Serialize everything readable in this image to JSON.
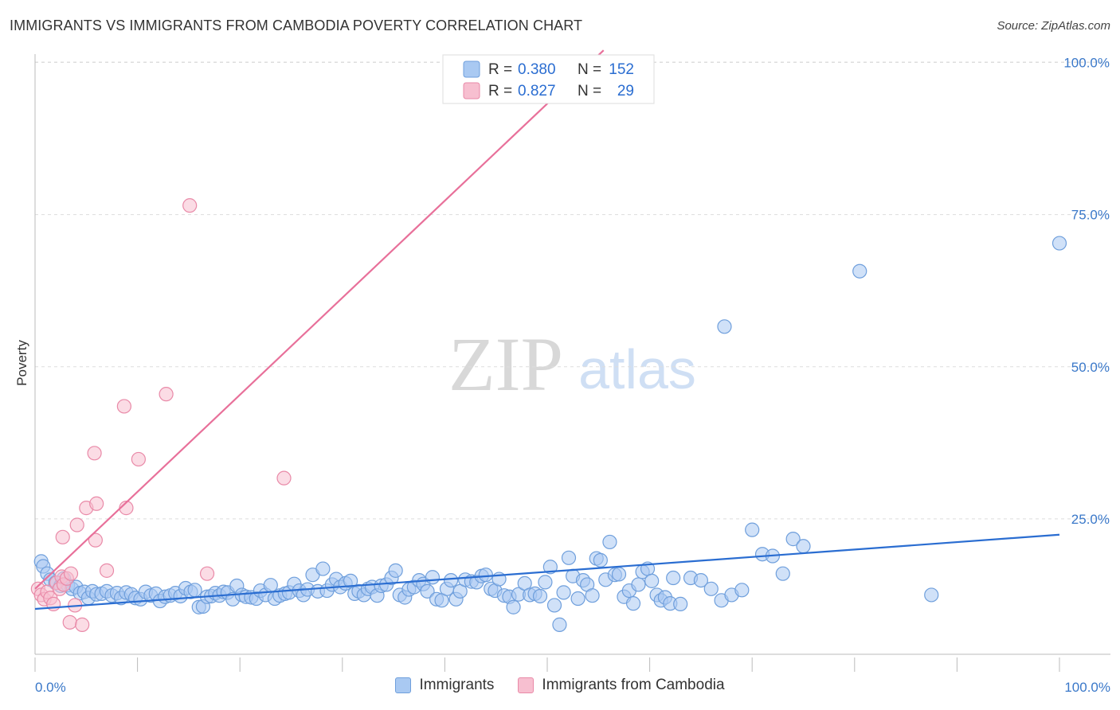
{
  "header": {
    "title": "IMMIGRANTS VS IMMIGRANTS FROM CAMBODIA POVERTY CORRELATION CHART",
    "source": "Source: ZipAtlas.com"
  },
  "watermark": {
    "zip": "ZIP",
    "atlas": "atlas"
  },
  "colors": {
    "blue_fill": "#a9c9f2",
    "blue_stroke": "#6f9fdc",
    "blue_line": "#2a6dd1",
    "pink_fill": "#f7bfd0",
    "pink_stroke": "#e98aa8",
    "pink_line": "#e8709a",
    "label_blue": "#3a78c9",
    "grid": "#dddddd",
    "axis": "#bbbbbb"
  },
  "legend": {
    "items": [
      {
        "r_label": "R =",
        "r_value": "0.380",
        "n_label": "N =",
        "n_value": "152"
      },
      {
        "r_label": "R =",
        "r_value": "0.827",
        "n_label": "N =",
        "n_value": "29"
      }
    ]
  },
  "bottom_legend": {
    "series1": "Immigrants",
    "series2": "Immigrants from Cambodia"
  },
  "chart_data": {
    "type": "scatter",
    "title": "IMMIGRANTS VS IMMIGRANTS FROM CAMBODIA POVERTY CORRELATION CHART",
    "xlabel": "",
    "ylabel": "Poverty",
    "xlim": [
      0,
      100
    ],
    "ylim": [
      0,
      102
    ],
    "x_tick_labels": [
      "0.0%",
      "100.0%"
    ],
    "y_ticks": [
      25,
      50,
      75,
      100
    ],
    "y_tick_labels": [
      "25.0%",
      "50.0%",
      "75.0%",
      "100.0%"
    ],
    "grid": true,
    "legend_position": "top-center",
    "series": [
      {
        "name": "Immigrants",
        "r": 0.38,
        "n": 152,
        "trend": {
          "x": [
            0,
            100
          ],
          "y": [
            10.2,
            22.4
          ]
        },
        "points": [
          [
            0.6,
            18
          ],
          [
            0.8,
            17.2
          ],
          [
            1.2,
            16
          ],
          [
            1.5,
            15
          ],
          [
            2,
            14.5
          ],
          [
            2.5,
            14
          ],
          [
            2.8,
            15.2
          ],
          [
            3.2,
            14.1
          ],
          [
            3.6,
            13.5
          ],
          [
            4,
            13.8
          ],
          [
            4.4,
            12.8
          ],
          [
            4.8,
            13
          ],
          [
            5.2,
            12
          ],
          [
            5.6,
            13.1
          ],
          [
            6,
            12.6
          ],
          [
            6.5,
            12.7
          ],
          [
            7,
            13.1
          ],
          [
            7.5,
            12.4
          ],
          [
            8,
            12.8
          ],
          [
            8.4,
            12
          ],
          [
            8.9,
            12.9
          ],
          [
            9.4,
            12.6
          ],
          [
            9.8,
            12
          ],
          [
            10.3,
            11.8
          ],
          [
            10.8,
            13
          ],
          [
            11.3,
            12.4
          ],
          [
            11.8,
            12.7
          ],
          [
            12.2,
            11.5
          ],
          [
            12.7,
            12.2
          ],
          [
            13.2,
            12.4
          ],
          [
            13.7,
            12.8
          ],
          [
            14.2,
            12.3
          ],
          [
            14.7,
            13.6
          ],
          [
            15.2,
            13
          ],
          [
            15.6,
            13.3
          ],
          [
            16,
            10.5
          ],
          [
            16.4,
            10.6
          ],
          [
            16.8,
            12.2
          ],
          [
            17.2,
            12.3
          ],
          [
            17.6,
            12.8
          ],
          [
            18,
            12.4
          ],
          [
            18.4,
            13
          ],
          [
            18.8,
            12.9
          ],
          [
            19.3,
            11.8
          ],
          [
            19.7,
            14
          ],
          [
            20.2,
            12.5
          ],
          [
            20.6,
            12.2
          ],
          [
            21.1,
            12.1
          ],
          [
            21.6,
            11.9
          ],
          [
            22,
            13.2
          ],
          [
            22.5,
            12.5
          ],
          [
            23,
            14.1
          ],
          [
            23.4,
            11.9
          ],
          [
            23.9,
            12.4
          ],
          [
            24.4,
            12.7
          ],
          [
            24.8,
            12.9
          ],
          [
            25.3,
            14.3
          ],
          [
            25.8,
            13.2
          ],
          [
            26.2,
            12.5
          ],
          [
            26.6,
            13.4
          ],
          [
            27.1,
            15.8
          ],
          [
            27.6,
            13.1
          ],
          [
            28.1,
            16.8
          ],
          [
            28.5,
            13.2
          ],
          [
            29,
            14.2
          ],
          [
            29.4,
            15.1
          ],
          [
            29.8,
            13.8
          ],
          [
            30.3,
            14.4
          ],
          [
            30.8,
            14.8
          ],
          [
            31.2,
            12.7
          ],
          [
            31.6,
            13.1
          ],
          [
            32.1,
            12.5
          ],
          [
            32.5,
            13.5
          ],
          [
            32.9,
            13.8
          ],
          [
            33.4,
            12.4
          ],
          [
            33.8,
            14
          ],
          [
            34.3,
            14.2
          ],
          [
            34.8,
            15.3
          ],
          [
            35.2,
            16.5
          ],
          [
            35.6,
            12.5
          ],
          [
            36.1,
            12.1
          ],
          [
            36.5,
            13.4
          ],
          [
            37,
            13.8
          ],
          [
            37.5,
            14.9
          ],
          [
            37.9,
            14.3
          ],
          [
            38.3,
            13.1
          ],
          [
            38.8,
            15.4
          ],
          [
            39.2,
            11.8
          ],
          [
            39.7,
            11.6
          ],
          [
            40.2,
            13.5
          ],
          [
            40.6,
            14.9
          ],
          [
            41.1,
            11.8
          ],
          [
            41.5,
            13.1
          ],
          [
            42,
            15
          ],
          [
            42.6,
            14.7
          ],
          [
            43.1,
            14.6
          ],
          [
            43.6,
            15.6
          ],
          [
            44,
            15.8
          ],
          [
            44.5,
            13.5
          ],
          [
            44.9,
            13.2
          ],
          [
            45.3,
            15.1
          ],
          [
            45.8,
            12.4
          ],
          [
            46.3,
            12.2
          ],
          [
            46.7,
            10.5
          ],
          [
            47.2,
            12.6
          ],
          [
            47.8,
            14.4
          ],
          [
            48.3,
            12.5
          ],
          [
            48.8,
            12.7
          ],
          [
            49.3,
            12.3
          ],
          [
            49.8,
            14.6
          ],
          [
            50.3,
            17.1
          ],
          [
            50.7,
            10.8
          ],
          [
            51.2,
            7.6
          ],
          [
            51.6,
            12.9
          ],
          [
            52.1,
            18.6
          ],
          [
            52.5,
            15.6
          ],
          [
            53,
            11.9
          ],
          [
            53.5,
            14.9
          ],
          [
            53.9,
            14.2
          ],
          [
            54.4,
            12.4
          ],
          [
            54.8,
            18.5
          ],
          [
            55.2,
            18.2
          ],
          [
            55.7,
            15
          ],
          [
            56.1,
            21.2
          ],
          [
            56.6,
            15.8
          ],
          [
            57,
            15.9
          ],
          [
            57.5,
            12.2
          ],
          [
            58,
            13.2
          ],
          [
            58.4,
            11.1
          ],
          [
            58.9,
            14.2
          ],
          [
            59.3,
            16.3
          ],
          [
            59.8,
            16.8
          ],
          [
            60.2,
            14.8
          ],
          [
            60.7,
            12.5
          ],
          [
            61.1,
            11.6
          ],
          [
            61.5,
            12.1
          ],
          [
            62,
            11.1
          ],
          [
            62.3,
            15.3
          ],
          [
            63,
            11
          ],
          [
            64,
            15.3
          ],
          [
            65,
            14.9
          ],
          [
            66,
            13.5
          ],
          [
            67,
            11.6
          ],
          [
            68,
            12.5
          ],
          [
            69,
            13.3
          ],
          [
            70,
            23.2
          ],
          [
            71,
            19.2
          ],
          [
            72,
            18.9
          ],
          [
            73,
            16
          ],
          [
            74,
            21.7
          ],
          [
            75,
            20.5
          ],
          [
            80.5,
            65.7
          ],
          [
            67.3,
            56.6
          ],
          [
            87.5,
            12.5
          ],
          [
            100,
            70.3
          ]
        ]
      },
      {
        "name": "Immigrants from Cambodia",
        "r": 0.827,
        "n": 29,
        "trend": {
          "x": [
            0,
            55.5
          ],
          "y": [
            13.5,
            102
          ]
        },
        "points": [
          [
            0.3,
            13.5
          ],
          [
            0.6,
            12.5
          ],
          [
            0.9,
            11.8
          ],
          [
            1.2,
            13
          ],
          [
            1.5,
            12
          ],
          [
            1.8,
            11
          ],
          [
            2.1,
            14.5
          ],
          [
            2.4,
            13.5
          ],
          [
            2.6,
            15.5
          ],
          [
            2.8,
            14.2
          ],
          [
            3.1,
            15.2
          ],
          [
            3.4,
            8
          ],
          [
            3.5,
            16
          ],
          [
            3.9,
            10.8
          ],
          [
            4.6,
            7.6
          ],
          [
            2.7,
            22
          ],
          [
            4.1,
            24
          ],
          [
            5,
            26.8
          ],
          [
            6,
            27.5
          ],
          [
            5.9,
            21.5
          ],
          [
            7,
            16.5
          ],
          [
            8.9,
            26.8
          ],
          [
            5.8,
            35.8
          ],
          [
            10.1,
            34.8
          ],
          [
            8.7,
            43.5
          ],
          [
            12.8,
            45.5
          ],
          [
            15.1,
            76.5
          ],
          [
            16.8,
            16
          ],
          [
            24.3,
            31.7
          ]
        ]
      }
    ]
  }
}
